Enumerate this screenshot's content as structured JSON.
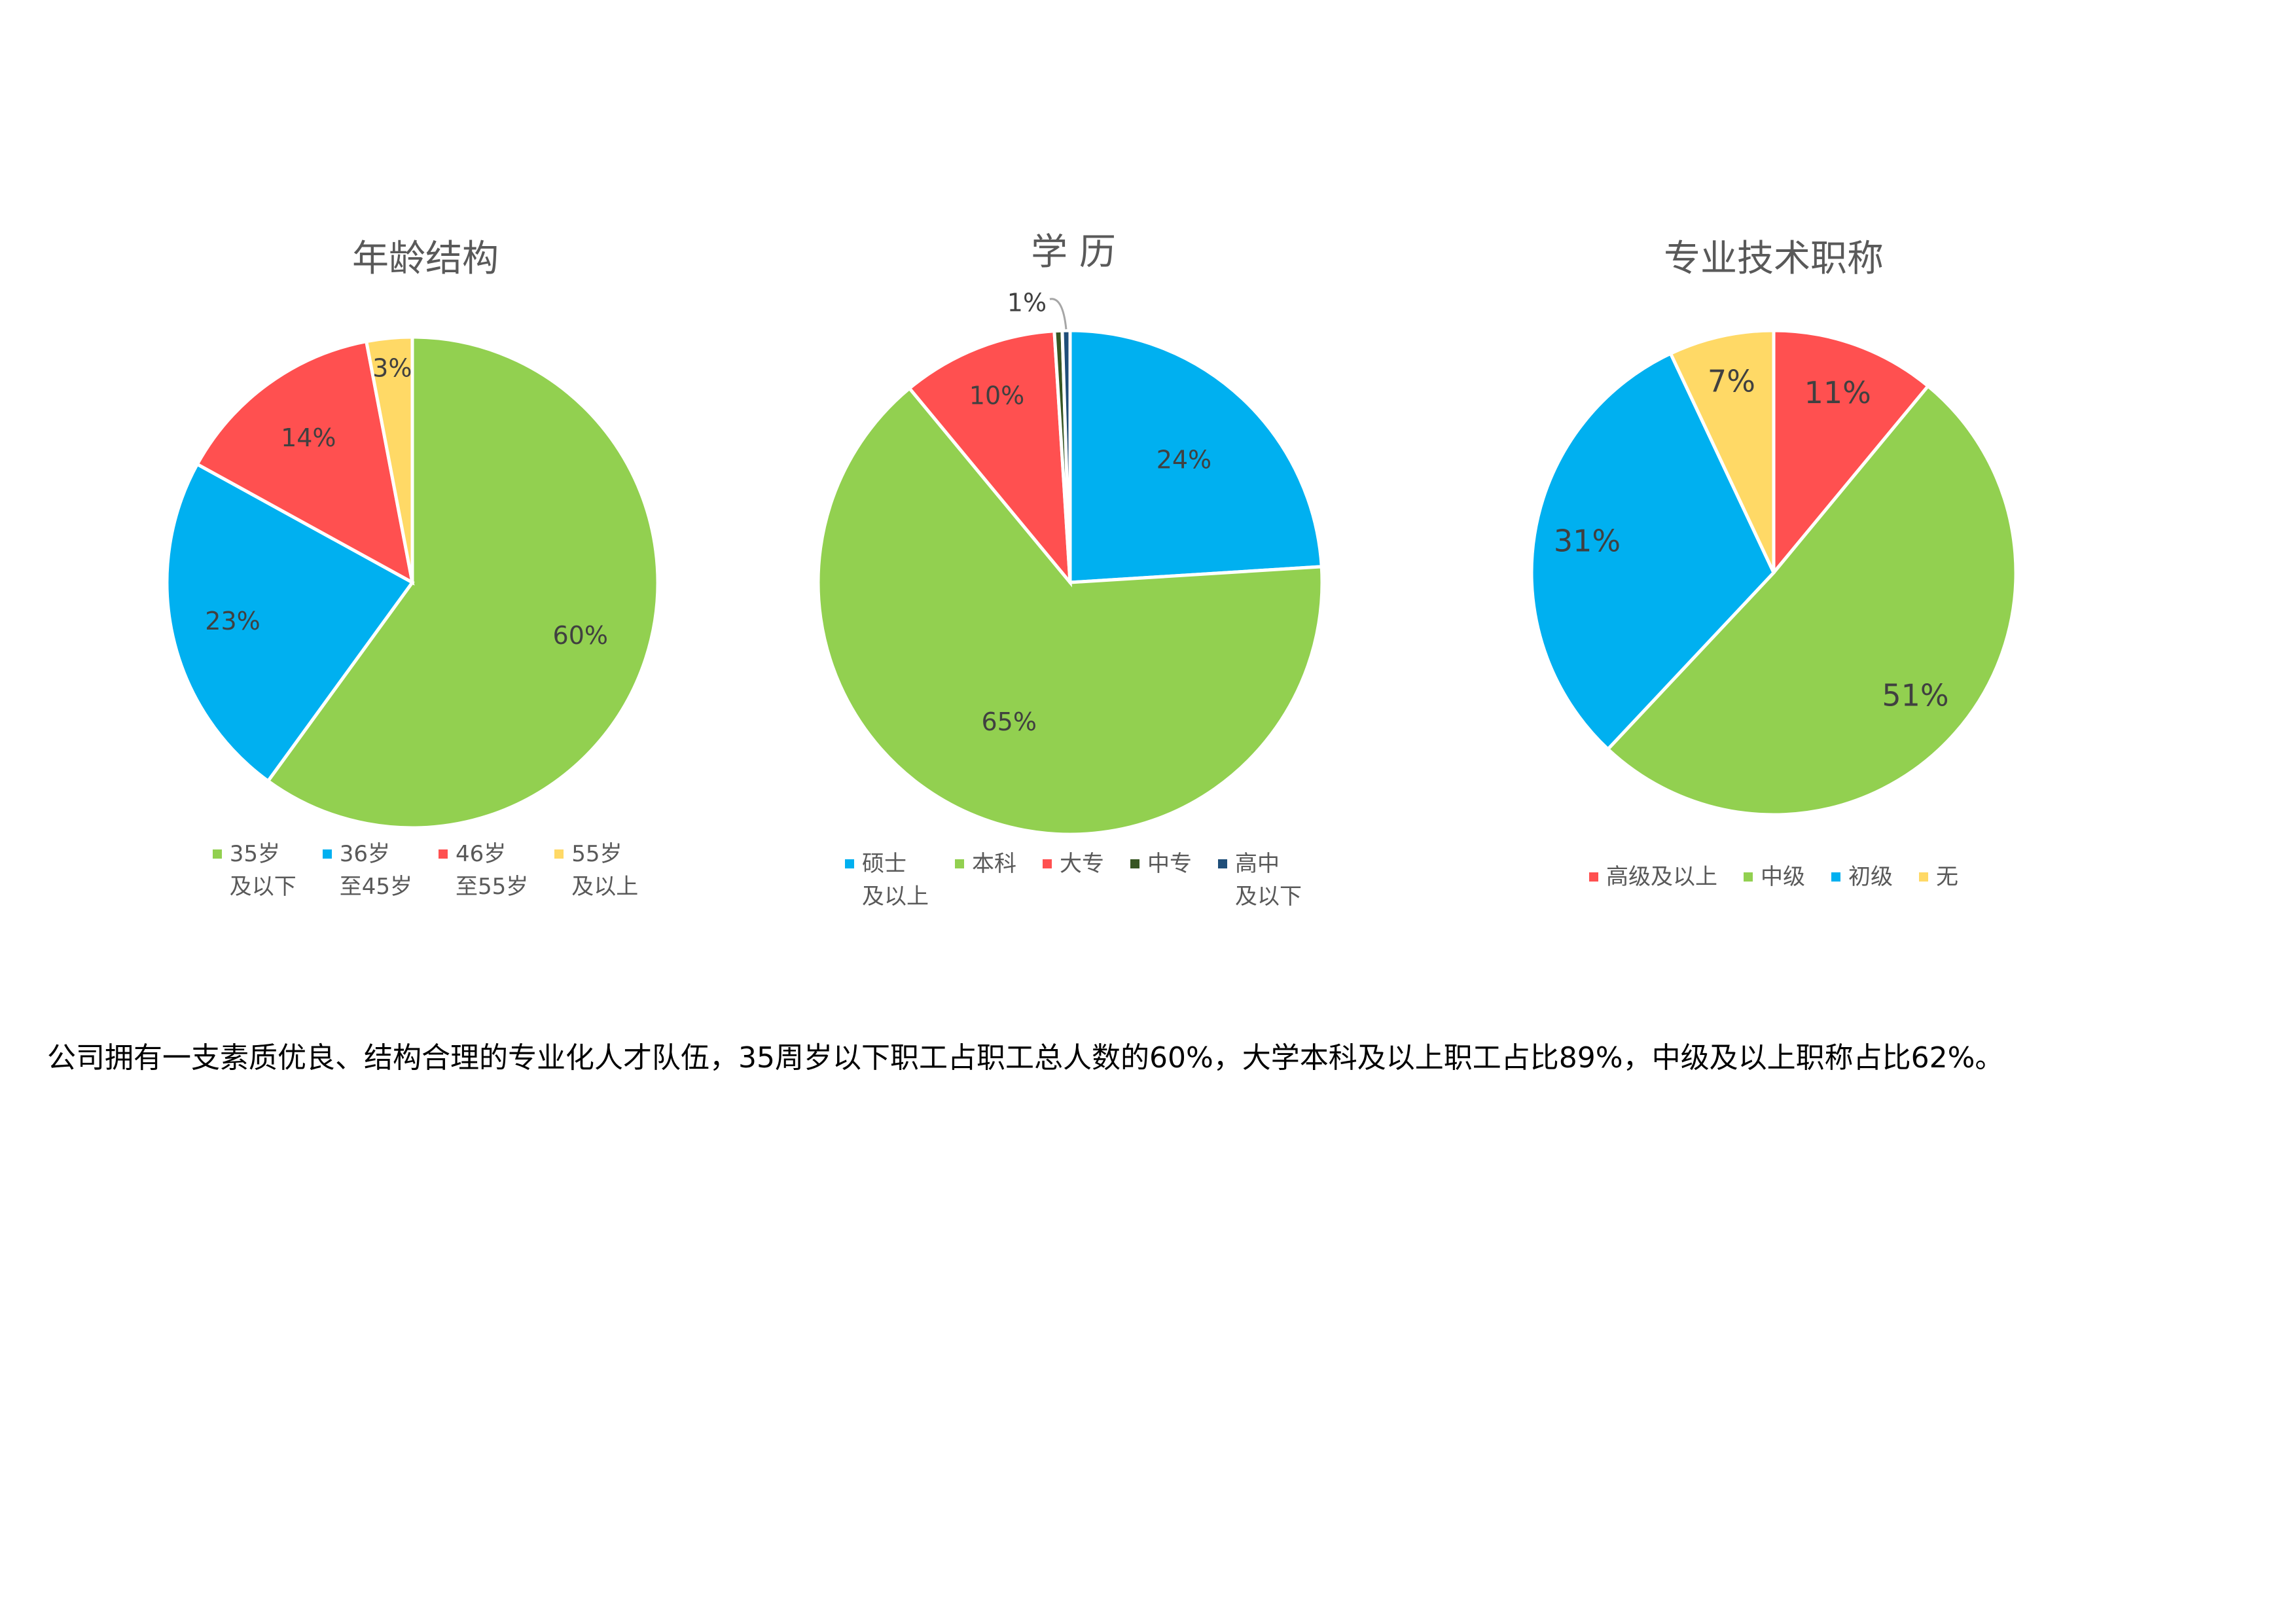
{
  "chart_data": [
    {
      "type": "pie",
      "title": "年龄结构",
      "categories": [
        "35岁\n及以下",
        "36岁\n至45岁",
        "46岁\n至55岁",
        "55岁\n及以上"
      ],
      "values": [
        60,
        23,
        14,
        3
      ],
      "labels": [
        "60%",
        "23%",
        "14%",
        "3%"
      ],
      "colors": [
        "#92D050",
        "#00B0F0",
        "#FF5050",
        "#FFD966"
      ],
      "legend_position": "bottom"
    },
    {
      "type": "pie",
      "title": "学  历",
      "categories": [
        "硕士\n及以上",
        "本科",
        "大专",
        "中专",
        "高中\n及以下"
      ],
      "values": [
        24,
        65,
        10,
        0.5,
        0.5
      ],
      "labels": [
        "24%",
        "65%",
        "10%",
        "",
        "1%"
      ],
      "colors": [
        "#00B0F0",
        "#92D050",
        "#FF5050",
        "#375623",
        "#1F4E79"
      ],
      "legend_position": "bottom"
    },
    {
      "type": "pie",
      "title": "专业技术职称",
      "categories": [
        "高级及以上",
        "中级",
        "初级",
        "无"
      ],
      "values": [
        11,
        51,
        31,
        7
      ],
      "labels": [
        "11%",
        "51%",
        "31%",
        "7%"
      ],
      "colors": [
        "#FF5050",
        "#92D050",
        "#00B0F0",
        "#FFD966"
      ],
      "legend_position": "bottom"
    }
  ],
  "footer": {
    "text": "公司拥有一支素质优良、结构合理的专业化人才队伍，35周岁以下职工占职工总人数的60%，大学本科及以上职工占比89%，中级及以上职称占比62%。"
  }
}
